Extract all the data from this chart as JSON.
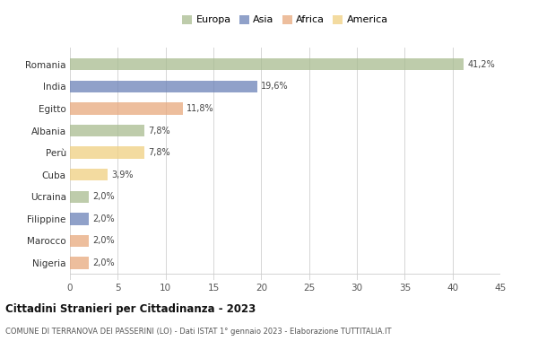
{
  "categories": [
    "Romania",
    "India",
    "Egitto",
    "Albania",
    "Perù",
    "Cuba",
    "Ucraina",
    "Filippine",
    "Marocco",
    "Nigeria"
  ],
  "values": [
    41.2,
    19.6,
    11.8,
    7.8,
    7.8,
    3.9,
    2.0,
    2.0,
    2.0,
    2.0
  ],
  "labels": [
    "41,2%",
    "19,6%",
    "11,8%",
    "7,8%",
    "7,8%",
    "3,9%",
    "2,0%",
    "2,0%",
    "2,0%",
    "2,0%"
  ],
  "colors": [
    "#a8bc8f",
    "#6b82b8",
    "#e8a87c",
    "#a8bc8f",
    "#f0d080",
    "#f0d080",
    "#a8bc8f",
    "#6b82b8",
    "#e8a87c",
    "#e8a87c"
  ],
  "legend_labels": [
    "Europa",
    "Asia",
    "Africa",
    "America"
  ],
  "legend_colors": [
    "#a8bc8f",
    "#6b82b8",
    "#e8a87c",
    "#f0d080"
  ],
  "title": "Cittadini Stranieri per Cittadinanza - 2023",
  "subtitle": "COMUNE DI TERRANOVA DEI PASSERINI (LO) - Dati ISTAT 1° gennaio 2023 - Elaborazione TUTTITALIA.IT",
  "xlim": [
    0,
    45
  ],
  "xticks": [
    0,
    5,
    10,
    15,
    20,
    25,
    30,
    35,
    40,
    45
  ],
  "background_color": "#ffffff",
  "grid_color": "#d0d0d0",
  "bar_height": 0.55,
  "bar_alpha": 0.75
}
